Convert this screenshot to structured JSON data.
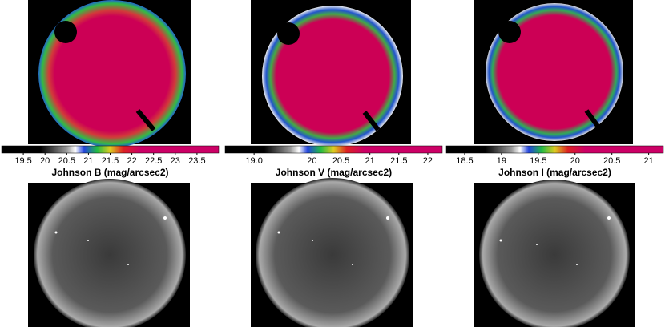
{
  "chart_data": [
    {
      "type": "colorbar",
      "title": "Johnson B (mag/arcsec2)",
      "xlim": [
        19,
        24
      ],
      "xticks": [
        19.5,
        20,
        20.5,
        21,
        21.5,
        22,
        22.5,
        23,
        23.5
      ]
    },
    {
      "type": "colorbar",
      "title": "Johnson V (mag/arcsec2)",
      "xlim": [
        18.5,
        22.25
      ],
      "xticks": [
        {
          "value": 19,
          "label": "19.0"
        },
        20,
        20.5,
        21,
        21.5,
        22
      ]
    },
    {
      "type": "colorbar",
      "title": "Johnson I (mag/arcsec2)",
      "xlim": [
        18.25,
        21.2
      ],
      "xticks": [
        18.5,
        19,
        19.5,
        20,
        20.5,
        21
      ]
    }
  ]
}
